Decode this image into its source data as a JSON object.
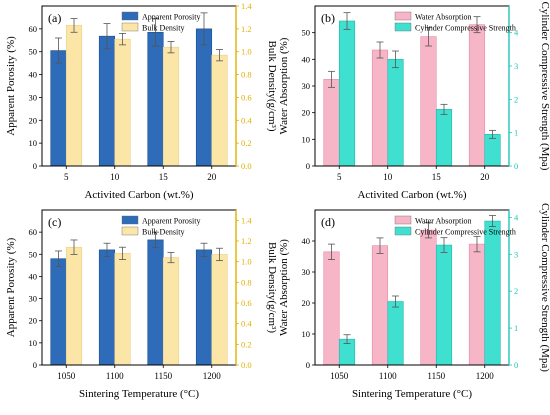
{
  "colors": {
    "porosity": "#2e6bb8",
    "density": "#fbe6a8",
    "density_axis": "#e0b000",
    "absorption": "#f7b6c8",
    "strength": "#3fe0d0",
    "strength_axis": "#1fc7b8",
    "axis": "#000000"
  },
  "chart_data": [
    {
      "type": "bar",
      "panel_label": "(a)",
      "xlabel": "Activited Carbon (wt.%)",
      "categories": [
        "5",
        "10",
        "15",
        "20"
      ],
      "ylabel_left": "Apparent Porosity (%)",
      "ylabel_right": "Bulk Density(g/cm³)",
      "ylim_left": [
        0,
        70
      ],
      "ylim_right": [
        0,
        1.4
      ],
      "yticks_left": [
        "0",
        "10",
        "20",
        "30",
        "40",
        "50",
        "60"
      ],
      "yticks_right": [
        "0.0",
        "0.2",
        "0.4",
        "0.6",
        "0.8",
        "1.0",
        "1.2",
        "1.4"
      ],
      "legend": "top-right",
      "series": [
        {
          "name": "Apparent Porosity",
          "axis": "left",
          "values": [
            50.5,
            56.8,
            58.5,
            60.0
          ],
          "errors": [
            5.5,
            5.5,
            6.0,
            7.0
          ]
        },
        {
          "name": "Bulk Density",
          "axis": "right",
          "values": [
            1.23,
            1.11,
            1.04,
            0.97
          ],
          "errors": [
            0.06,
            0.05,
            0.05,
            0.05
          ]
        }
      ]
    },
    {
      "type": "bar",
      "panel_label": "(b)",
      "xlabel": "Activited Carbon (wt.%)",
      "categories": [
        "5",
        "10",
        "15",
        "20"
      ],
      "ylabel_left": "Water Absorption (%)",
      "ylabel_right": "Cylinder Compressive Strength (Mpa)",
      "ylim_left": [
        0,
        60
      ],
      "ylim_right": [
        0,
        4.8
      ],
      "yticks_left": [
        "0",
        "10",
        "20",
        "30",
        "40",
        "50"
      ],
      "yticks_right": [
        "0",
        "1",
        "2",
        "3",
        "4"
      ],
      "legend": "top-right",
      "series": [
        {
          "name": "Water Absorption",
          "axis": "left",
          "values": [
            32.5,
            43.5,
            48.5,
            53.0
          ],
          "errors": [
            3.0,
            3.0,
            3.5,
            3.0
          ]
        },
        {
          "name": "Cylinder Compressive Strength",
          "axis": "right",
          "values": [
            4.35,
            3.2,
            1.7,
            0.95
          ],
          "errors": [
            0.25,
            0.25,
            0.15,
            0.12
          ]
        }
      ]
    },
    {
      "type": "bar",
      "panel_label": "(c)",
      "xlabel": "Sintering Temperature (°C)",
      "categories": [
        "1050",
        "1100",
        "1150",
        "1200"
      ],
      "ylabel_left": "Apparent Porosity (%)",
      "ylabel_right": "Bulk Density(g/cm³)",
      "ylim_left": [
        0,
        70
      ],
      "ylim_right": [
        0,
        1.5
      ],
      "yticks_left": [
        "0",
        "10",
        "20",
        "30",
        "40",
        "50",
        "60"
      ],
      "yticks_right": [
        "0.0",
        "0.2",
        "0.4",
        "0.6",
        "0.8",
        "1.0",
        "1.2",
        "1.4"
      ],
      "legend": "top-right",
      "series": [
        {
          "name": "Apparent Porosity",
          "axis": "left",
          "values": [
            48.0,
            52.0,
            56.5,
            52.0
          ],
          "errors": [
            3.5,
            3.0,
            3.5,
            3.0
          ]
        },
        {
          "name": "Bulk Density",
          "axis": "right",
          "values": [
            1.14,
            1.08,
            1.04,
            1.07
          ],
          "errors": [
            0.07,
            0.06,
            0.05,
            0.06
          ]
        }
      ]
    },
    {
      "type": "bar",
      "panel_label": "(d)",
      "xlabel": "Sintering Temperature (°C)",
      "categories": [
        "1050",
        "1100",
        "1150",
        "1200"
      ],
      "ylabel_left": "Water Absorption (%)",
      "ylabel_right": "Cylinder Compressive Strength (Mpa)",
      "ylim_left": [
        0,
        50
      ],
      "ylim_right": [
        0,
        4.2
      ],
      "yticks_left": [
        "0",
        "10",
        "20",
        "30",
        "40"
      ],
      "yticks_right": [
        "0",
        "1",
        "2",
        "3",
        "4"
      ],
      "legend": "top-right",
      "series": [
        {
          "name": "Water Absorption",
          "axis": "left",
          "values": [
            36.5,
            38.5,
            43.5,
            39.0
          ],
          "errors": [
            2.5,
            2.5,
            2.5,
            2.5
          ]
        },
        {
          "name": "Cylinder Compressive Strength",
          "axis": "right",
          "values": [
            0.7,
            1.72,
            3.25,
            3.9
          ],
          "errors": [
            0.12,
            0.15,
            0.2,
            0.15
          ]
        }
      ]
    }
  ]
}
